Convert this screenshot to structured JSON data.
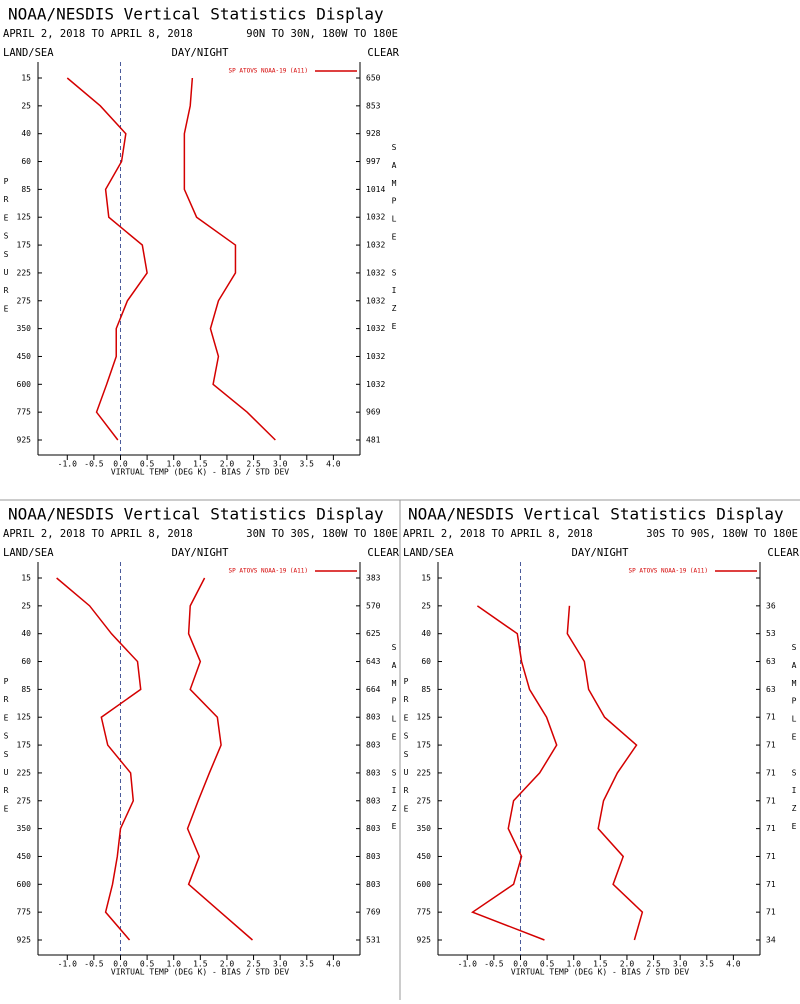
{
  "chart_data": [
    {
      "type": "line",
      "title": "NOAA/NESDIS Vertical Statistics Display",
      "subtitle": "APRIL 2, 2018 TO APRIL 8, 2018",
      "region": "90N TO 30N, 180W TO 180E",
      "land_sea": "LAND/SEA",
      "day_night": "DAY/NIGHT",
      "clear": "CLEAR",
      "categories": [
        "15",
        "25",
        "40",
        "60",
        "85",
        "125",
        "175",
        "225",
        "275",
        "350",
        "450",
        "600",
        "775",
        "925"
      ],
      "sample_size": [
        650,
        853,
        928,
        997,
        1014,
        1032,
        1032,
        1032,
        1032,
        1032,
        1032,
        1032,
        969,
        481
      ],
      "series": [
        {
          "name": "SP ATOVS NOAA-19 (A11)",
          "color": "#d40000",
          "bias": [
            -1.0,
            -0.38,
            0.1,
            0.02,
            -0.28,
            -0.22,
            0.41,
            0.5,
            0.13,
            -0.08,
            -0.08,
            -0.26,
            -0.45,
            -0.05
          ],
          "std_dev": [
            1.35,
            1.31,
            1.2,
            1.2,
            1.2,
            1.43,
            2.16,
            2.16,
            1.84,
            1.69,
            1.84,
            1.74,
            2.38,
            2.91
          ]
        }
      ],
      "xlim": [
        -1.55,
        4.5
      ],
      "xticks": [
        {
          "value": -1.0,
          "label": "-1.0"
        },
        -0.5,
        {
          "value": 0.0,
          "label": "0.0"
        },
        0.5,
        {
          "value": 1.0,
          "label": "1.0"
        },
        1.5,
        {
          "value": 2.0,
          "label": "2.0"
        },
        2.5,
        {
          "value": 3.0,
          "label": "3.0"
        },
        3.5,
        {
          "value": 4.0,
          "label": "4.0"
        }
      ],
      "x_label": "VIRTUAL TEMP (DEG K) - BIAS / STD DEV",
      "y_label": "PRESSURE",
      "y2_label": "SAMPLE SIZE"
    },
    {
      "type": "line",
      "title": "NOAA/NESDIS Vertical Statistics Display",
      "subtitle": "APRIL 2, 2018 TO APRIL 8, 2018",
      "region": "30N TO 30S, 180W TO 180E",
      "land_sea": "LAND/SEA",
      "day_night": "DAY/NIGHT",
      "clear": "CLEAR",
      "categories": [
        "15",
        "25",
        "40",
        "60",
        "85",
        "125",
        "175",
        "225",
        "275",
        "350",
        "450",
        "600",
        "775",
        "925"
      ],
      "sample_size": [
        383,
        570,
        625,
        643,
        664,
        803,
        803,
        803,
        803,
        803,
        803,
        803,
        769,
        531
      ],
      "series": [
        {
          "name": "SP ATOVS NOAA-19 (A11)",
          "color": "#d40000",
          "bias": [
            -1.2,
            -0.58,
            -0.17,
            0.32,
            0.38,
            -0.36,
            -0.24,
            0.19,
            0.24,
            0.0,
            -0.06,
            -0.15,
            -0.28,
            0.17
          ],
          "std_dev": [
            1.58,
            1.31,
            1.28,
            1.5,
            1.31,
            1.82,
            1.89,
            1.67,
            1.46,
            1.26,
            1.48,
            1.28,
            1.88,
            2.48
          ]
        }
      ],
      "xlim": [
        -1.55,
        4.5
      ],
      "xticks": [
        {
          "value": -1.0,
          "label": "-1.0"
        },
        -0.5,
        {
          "value": 0.0,
          "label": "0.0"
        },
        0.5,
        {
          "value": 1.0,
          "label": "1.0"
        },
        1.5,
        {
          "value": 2.0,
          "label": "2.0"
        },
        2.5,
        {
          "value": 3.0,
          "label": "3.0"
        },
        3.5,
        {
          "value": 4.0,
          "label": "4.0"
        }
      ],
      "x_label": "VIRTUAL TEMP (DEG K) - BIAS / STD DEV",
      "y_label": "PRESSURE",
      "y2_label": "SAMPLE SIZE"
    },
    {
      "type": "line",
      "title": "NOAA/NESDIS Vertical Statistics Display",
      "subtitle": "APRIL 2, 2018 TO APRIL 8, 2018",
      "region": "30S TO 90S, 180W TO 180E",
      "land_sea": "LAND/SEA",
      "day_night": "DAY/NIGHT",
      "clear": "CLEAR",
      "categories": [
        "15",
        "25",
        "40",
        "60",
        "85",
        "125",
        "175",
        "225",
        "275",
        "350",
        "450",
        "600",
        "775",
        "925"
      ],
      "sample_size": [
        null,
        36,
        53,
        63,
        63,
        71,
        71,
        71,
        71,
        71,
        71,
        71,
        71,
        34
      ],
      "series": [
        {
          "name": "SP ATOVS NOAA-19 (A11)",
          "color": "#d40000",
          "bias": [
            null,
            -0.81,
            -0.06,
            0.02,
            0.17,
            0.49,
            0.68,
            0.36,
            -0.13,
            -0.23,
            0.02,
            -0.13,
            -0.9,
            0.45
          ],
          "std_dev": [
            null,
            0.92,
            0.88,
            1.2,
            1.28,
            1.58,
            2.18,
            1.82,
            1.56,
            1.46,
            1.93,
            1.74,
            2.29,
            2.14
          ]
        }
      ],
      "xlim": [
        -1.55,
        4.5
      ],
      "xticks": [
        {
          "value": -1.0,
          "label": "-1.0"
        },
        -0.5,
        {
          "value": 0.0,
          "label": "0.0"
        },
        0.5,
        {
          "value": 1.0,
          "label": "1.0"
        },
        1.5,
        {
          "value": 2.0,
          "label": "2.0"
        },
        2.5,
        {
          "value": 3.0,
          "label": "3.0"
        },
        3.5,
        {
          "value": 4.0,
          "label": "4.0"
        }
      ],
      "x_label": "VIRTUAL TEMP (DEG K) - BIAS / STD DEV",
      "y_label": "PRESSURE",
      "y2_label": "SAMPLE SIZE"
    }
  ]
}
